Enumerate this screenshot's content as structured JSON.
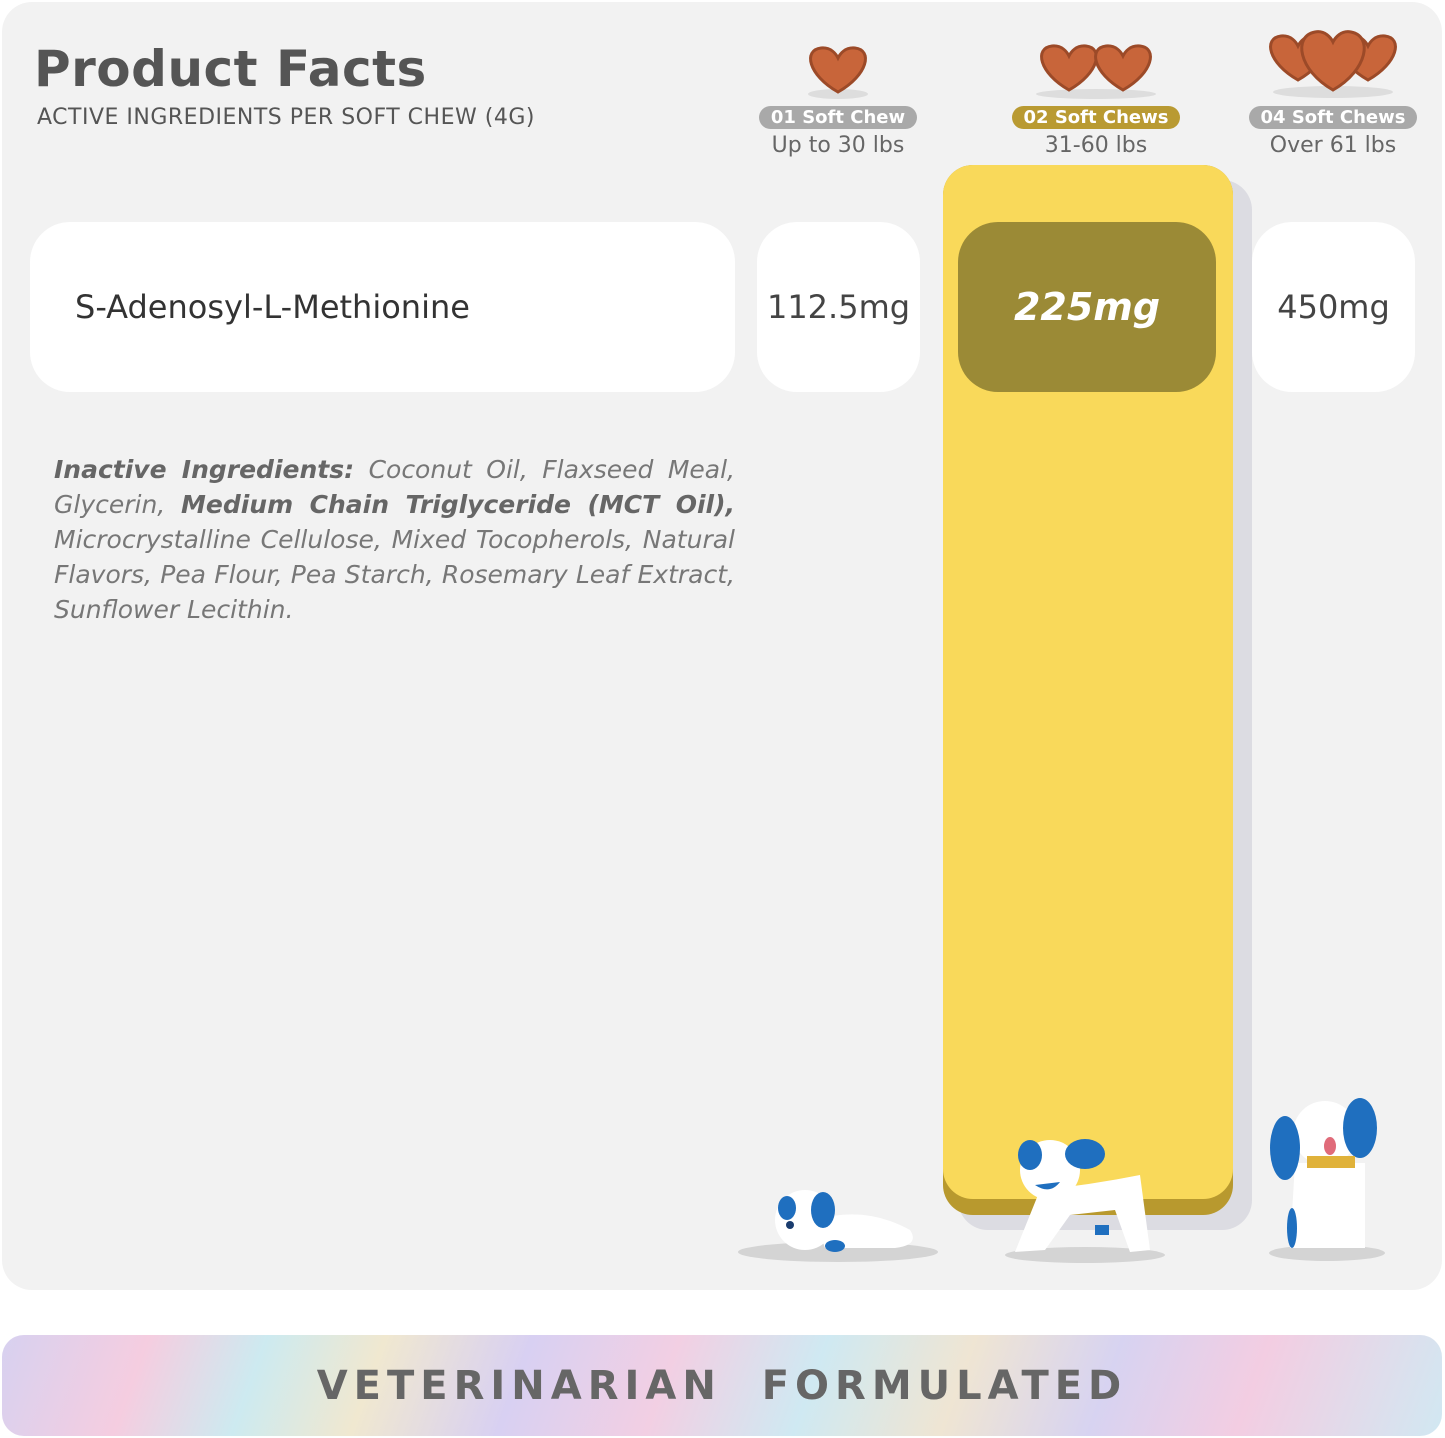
{
  "header": {
    "title": "Product Facts",
    "subtitle": "ACTIVE INGREDIENTS PER SOFT CHEW (4G)"
  },
  "dosages": [
    {
      "badge": "01 Soft Chew",
      "weight": "Up to 30 lbs",
      "chews": 1,
      "active": false
    },
    {
      "badge": "02 Soft Chews",
      "weight": "31-60 lbs",
      "chews": 2,
      "active": true
    },
    {
      "badge": "04 Soft Chews",
      "weight": "Over 61 lbs",
      "chews": 4,
      "active": false
    }
  ],
  "ingredient": {
    "name": "S-Adenosyl-L-Methionine",
    "amounts": [
      "112.5mg",
      "225mg",
      "450mg"
    ]
  },
  "inactive": {
    "label": "Inactive Ingredients:",
    "part1": " Coconut Oil, Flaxseed Meal, Glycerin, ",
    "bold": "Medium Chain Triglyceride (MCT Oil),",
    "part2": " Microcrystalline Cellulose, Mixed Tocopherols, Natural Flavors, Pea Flour, Pea Starch, Rosemary Leaf Extract, Sunflower Lecithin."
  },
  "banner": {
    "text": "VETERINARIAN  FORMULATED"
  },
  "colors": {
    "highlight_column": "#f9d95a",
    "highlight_cell": "#9b8a36",
    "badge_active": "#b99a32",
    "badge": "#a9a9a9",
    "dog_blue": "#1f6fbf",
    "chew": "#c8653a"
  }
}
